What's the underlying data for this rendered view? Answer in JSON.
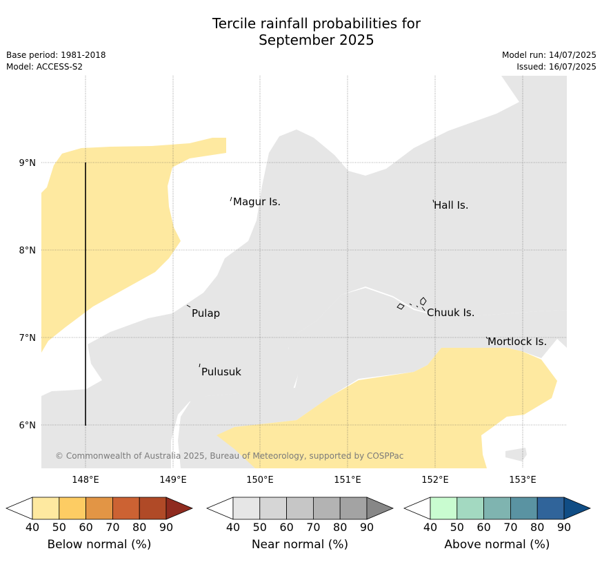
{
  "title_line1": "Tercile rainfall probabilities for",
  "title_line2": "September 2025",
  "base_period": "Base period: 1981-2018",
  "model": "Model: ACCESS-S2",
  "model_run": "Model run: 14/07/2025",
  "issued": "Issued: 16/07/2025",
  "copyright": "© Commonwealth of Australia 2025, Bureau of Meteorology, supported by COSPPac",
  "map": {
    "lon_ticks": [
      "148°E",
      "149°E",
      "150°E",
      "151°E",
      "152°E",
      "153°E"
    ],
    "lat_ticks": [
      "9°N",
      "8°N",
      "7°N",
      "6°N"
    ],
    "places": [
      "Magur Is.",
      "Hall Is.",
      "Pulap",
      "Chuuk Is.",
      "Mortlock Is.",
      "Pulusuk"
    ],
    "colors": {
      "near_normal_fill": "#e6e6e6",
      "below_normal_fill": "#fee9a0"
    }
  },
  "colorbars": [
    {
      "label": "Below normal (%)",
      "ticks": [
        "40",
        "50",
        "60",
        "70",
        "80",
        "90"
      ],
      "colors": [
        "#fee9a0",
        "#fdcc63",
        "#e29545",
        "#cc6233",
        "#b04a27",
        "#8f2b1f"
      ]
    },
    {
      "label": "Near normal (%)",
      "ticks": [
        "40",
        "50",
        "60",
        "70",
        "80",
        "90"
      ],
      "colors": [
        "#e6e6e6",
        "#d6d6d6",
        "#c6c6c6",
        "#b3b3b3",
        "#a3a3a3",
        "#878787"
      ]
    },
    {
      "label": "Above normal (%)",
      "ticks": [
        "40",
        "50",
        "60",
        "70",
        "80",
        "90"
      ],
      "colors": [
        "#c9fcd0",
        "#a3d9c1",
        "#7fb4b0",
        "#5a93a2",
        "#30649a",
        "#104d85"
      ]
    }
  ]
}
